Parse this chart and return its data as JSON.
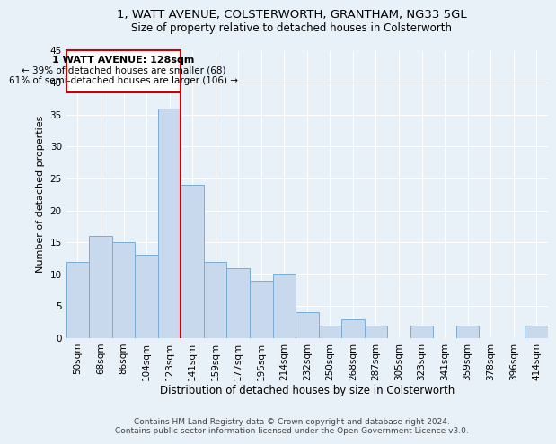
{
  "title1": "1, WATT AVENUE, COLSTERWORTH, GRANTHAM, NG33 5GL",
  "title2": "Size of property relative to detached houses in Colsterworth",
  "xlabel": "Distribution of detached houses by size in Colsterworth",
  "ylabel": "Number of detached properties",
  "footer1": "Contains HM Land Registry data © Crown copyright and database right 2024.",
  "footer2": "Contains public sector information licensed under the Open Government Licence v3.0.",
  "annotation_line1": "1 WATT AVENUE: 128sqm",
  "annotation_line2": "← 39% of detached houses are smaller (68)",
  "annotation_line3": "61% of semi-detached houses are larger (106) →",
  "bar_labels": [
    "50sqm",
    "68sqm",
    "86sqm",
    "104sqm",
    "123sqm",
    "141sqm",
    "159sqm",
    "177sqm",
    "195sqm",
    "214sqm",
    "232sqm",
    "250sqm",
    "268sqm",
    "287sqm",
    "305sqm",
    "323sqm",
    "341sqm",
    "359sqm",
    "378sqm",
    "396sqm",
    "414sqm"
  ],
  "bar_values": [
    12,
    16,
    15,
    13,
    36,
    24,
    12,
    11,
    9,
    10,
    4,
    2,
    3,
    2,
    0,
    2,
    0,
    2,
    0,
    0,
    2
  ],
  "bar_color": "#c8d9ee",
  "bar_edge_color": "#7aadd4",
  "bar_width": 1.0,
  "red_line_x": 4.5,
  "ylim": [
    0,
    45
  ],
  "yticks": [
    0,
    5,
    10,
    15,
    20,
    25,
    30,
    35,
    40,
    45
  ],
  "background_color": "#e8f0f8",
  "plot_bg_color": "#e8f0f8",
  "annotation_border_color": "#cc0000",
  "red_line_color": "#cc0000",
  "grid_color": "#ffffff",
  "title1_fontsize": 9.5,
  "title2_fontsize": 8.5,
  "xlabel_fontsize": 8.5,
  "ylabel_fontsize": 8,
  "tick_fontsize": 7.5,
  "footer_fontsize": 6.5
}
